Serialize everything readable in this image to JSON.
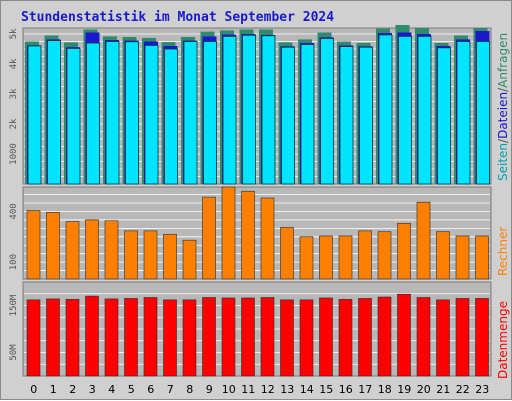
{
  "title": "Stundenstatistik im Monat September 2024",
  "colors": {
    "title": "#1a1acc",
    "background": "#d0d0d0",
    "plot_background": "#b8b8b8",
    "gridline": "#ffffff",
    "hits": "#2e8b70",
    "files": "#1a1acc",
    "pages": "#00e5ff",
    "visits": "#ff8000",
    "kbytes": "#ff0000"
  },
  "side_labels": {
    "pages": "Seiten",
    "separator1": "/",
    "files": "Dateien",
    "separator2": "/",
    "hits": "Anfragen",
    "visits": "Rechner",
    "kbytes": "Datenmenge"
  },
  "chart_data": [
    {
      "type": "bar",
      "name": "requests_files_pages",
      "categories": [
        "0",
        "1",
        "2",
        "3",
        "4",
        "5",
        "6",
        "7",
        "8",
        "9",
        "10",
        "11",
        "12",
        "13",
        "14",
        "15",
        "16",
        "17",
        "18",
        "19",
        "20",
        "21",
        "22",
        "23"
      ],
      "ylim": [
        0,
        5200
      ],
      "y_ticks": [
        "1000",
        "2k",
        "3k",
        "4k",
        "5k"
      ],
      "y_tick_values": [
        1000,
        2000,
        3000,
        4000,
        5000
      ],
      "series": [
        {
          "name": "Anfragen",
          "values": [
            4750,
            4950,
            4720,
            5150,
            4920,
            4900,
            4870,
            4730,
            4900,
            5080,
            5120,
            5150,
            5150,
            4720,
            4820,
            5050,
            4750,
            4700,
            5180,
            5300,
            5200,
            4700,
            4950,
            5200
          ]
        },
        {
          "name": "Dateien",
          "values": [
            4620,
            4820,
            4560,
            5050,
            4800,
            4780,
            4750,
            4600,
            4780,
            4920,
            4980,
            5000,
            4970,
            4590,
            4700,
            4890,
            4620,
            4590,
            5030,
            5050,
            5000,
            4600,
            4820,
            5100
          ]
        },
        {
          "name": "Seiten",
          "values": [
            4600,
            4780,
            4520,
            4700,
            4750,
            4740,
            4620,
            4500,
            4750,
            4750,
            4920,
            4960,
            4940,
            4560,
            4650,
            4850,
            4580,
            4560,
            4970,
            4920,
            4920,
            4540,
            4750,
            4750
          ]
        }
      ]
    },
    {
      "type": "bar",
      "name": "Rechner",
      "categories": [
        "0",
        "1",
        "2",
        "3",
        "4",
        "5",
        "6",
        "7",
        "8",
        "9",
        "10",
        "11",
        "12",
        "13",
        "14",
        "15",
        "16",
        "17",
        "18",
        "19",
        "20",
        "21",
        "22",
        "23"
      ],
      "ylim": [
        0,
        545
      ],
      "y_ticks": [
        "100",
        "400"
      ],
      "y_tick_values": [
        100,
        400
      ],
      "series": [
        {
          "name": "Rechner",
          "values": [
            405,
            395,
            340,
            350,
            345,
            285,
            285,
            265,
            230,
            485,
            545,
            520,
            480,
            305,
            250,
            255,
            255,
            285,
            280,
            330,
            455,
            280,
            255,
            255
          ]
        }
      ]
    },
    {
      "type": "bar",
      "name": "Datenmenge",
      "categories": [
        "0",
        "1",
        "2",
        "3",
        "4",
        "5",
        "6",
        "7",
        "8",
        "9",
        "10",
        "11",
        "12",
        "13",
        "14",
        "15",
        "16",
        "17",
        "18",
        "19",
        "20",
        "21",
        "22",
        "23"
      ],
      "ylim": [
        0,
        200
      ],
      "y_ticks": [
        "50M",
        "150M"
      ],
      "y_tick_values": [
        50,
        150
      ],
      "series": [
        {
          "name": "Datenmenge",
          "values": [
            162,
            164,
            163,
            170,
            164,
            165,
            167,
            162,
            162,
            167,
            166,
            166,
            167,
            162,
            162,
            166,
            163,
            165,
            168,
            174,
            167,
            162,
            165,
            165
          ]
        }
      ]
    }
  ]
}
